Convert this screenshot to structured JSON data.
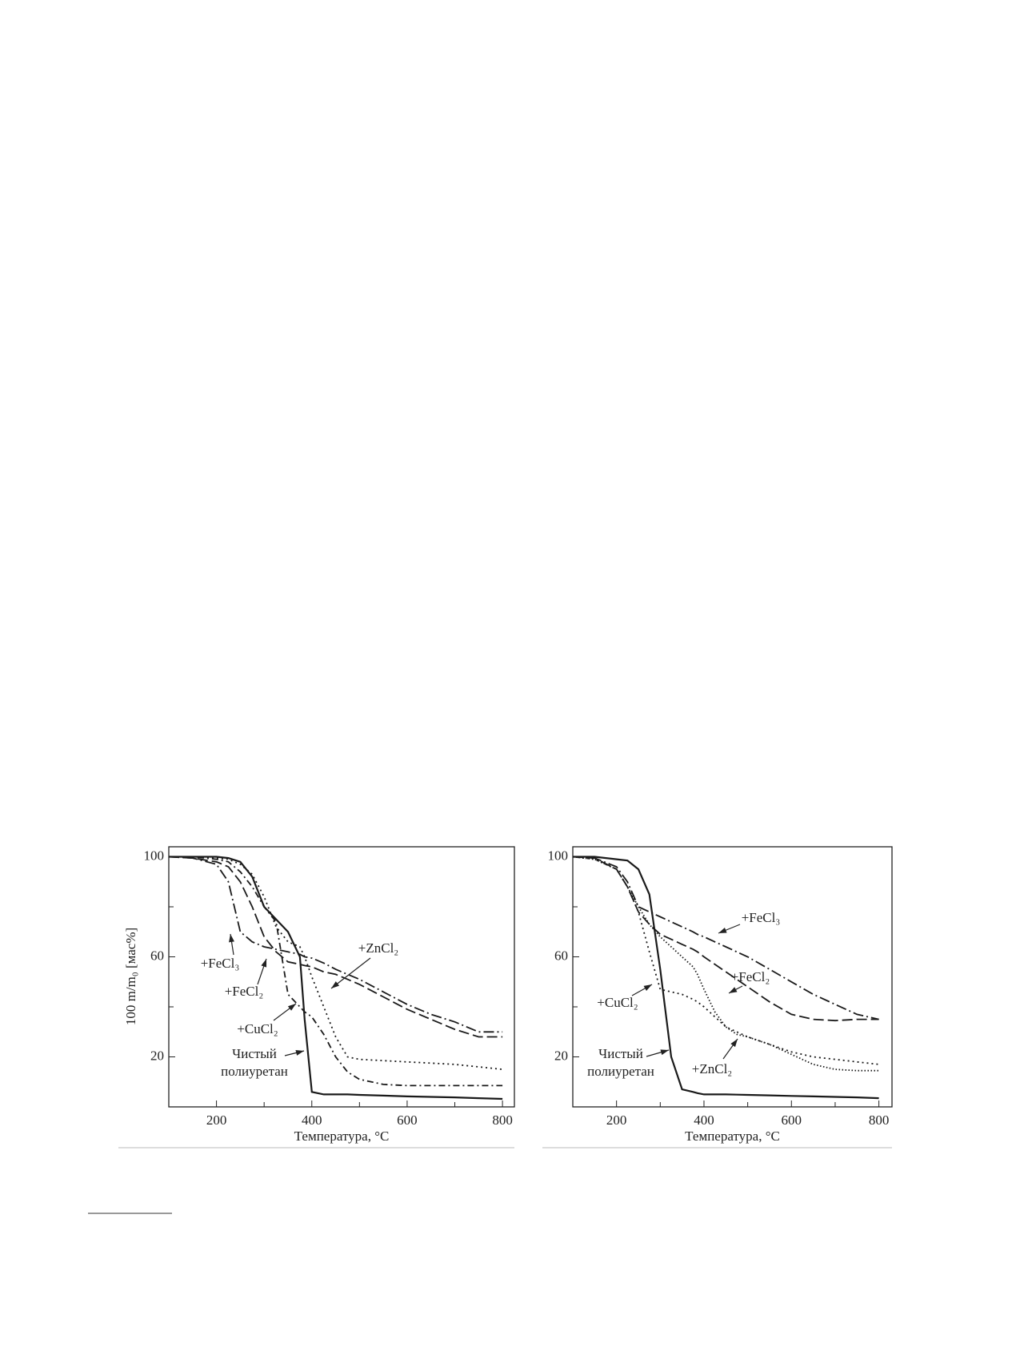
{
  "chart_data": [
    {
      "type": "line",
      "xlabel": "Температура, °C",
      "ylabel": "100 m/m₀ [мас%]",
      "x": [
        100,
        150,
        200,
        225,
        250,
        275,
        300,
        325,
        350,
        375,
        385,
        400,
        425,
        450,
        475,
        500,
        550,
        600,
        650,
        700,
        750,
        800
      ],
      "xlim": [
        100,
        825
      ],
      "ylim": [
        0,
        104
      ],
      "xticks": [
        200,
        400,
        600,
        800
      ],
      "yticks": [
        20,
        60,
        100
      ],
      "xminor": [
        300,
        500,
        700
      ],
      "yminor": [
        40,
        80
      ],
      "color": "#1a1a1a",
      "series": [
        {
          "name": "Чистый полиуретан",
          "line_style": "solid",
          "values": [
            100,
            100,
            100,
            99.5,
            98,
            92,
            80,
            75,
            70,
            60,
            35,
            6,
            5,
            5,
            5,
            4.8,
            4.5,
            4.2,
            4,
            3.8,
            3.5,
            3.2
          ]
        },
        {
          "name": "+FeCl₃",
          "line_style": "dashdot",
          "values": [
            100,
            99.5,
            97,
            90,
            70,
            66,
            64,
            63,
            62,
            61,
            60,
            59.5,
            57.5,
            55,
            53,
            51,
            46,
            41,
            37,
            34,
            30,
            30
          ]
        },
        {
          "name": "+FeCl₂",
          "line_style": "dashed",
          "values": [
            100,
            99.5,
            98,
            96,
            90,
            80,
            68,
            62,
            58,
            57,
            56.5,
            56,
            54,
            53,
            51,
            49,
            44,
            39,
            35,
            31,
            28,
            28
          ]
        },
        {
          "name": "+CuCl₂",
          "line_style": "dashdot2",
          "values": [
            100,
            100,
            99,
            98,
            94,
            88,
            80,
            74,
            45,
            40,
            38,
            36,
            29,
            20,
            14,
            11,
            9,
            8.5,
            8.5,
            8.5,
            8.5,
            8.5
          ]
        },
        {
          "name": "+ZnCl₂",
          "line_style": "dotted",
          "values": [
            100,
            100,
            99.5,
            99,
            97,
            93,
            84,
            72,
            66,
            64,
            60,
            52,
            40,
            28,
            20,
            19,
            18.5,
            18,
            17.5,
            17,
            16,
            15
          ]
        }
      ]
    },
    {
      "type": "line",
      "xlabel": "Температура, °C",
      "x": [
        100,
        150,
        200,
        225,
        250,
        275,
        300,
        325,
        350,
        375,
        385,
        400,
        425,
        450,
        475,
        500,
        550,
        600,
        650,
        700,
        750,
        800
      ],
      "xlim": [
        100,
        830
      ],
      "ylim": [
        0,
        104
      ],
      "xticks": [
        200,
        400,
        600,
        800
      ],
      "yticks": [
        20,
        60,
        100
      ],
      "xminor": [
        300,
        500,
        700
      ],
      "yminor": [
        40,
        80
      ],
      "color": "#1a1a1a",
      "series": [
        {
          "name": "Чистый полиуретан",
          "line_style": "solid",
          "values": [
            100,
            100,
            99,
            98.5,
            95,
            85,
            55,
            20,
            7,
            6,
            5.5,
            5,
            5,
            5,
            4.9,
            4.8,
            4.6,
            4.4,
            4.2,
            4,
            3.8,
            3.5
          ]
        },
        {
          "name": "+FeCl₃",
          "line_style": "dashdot",
          "values": [
            100,
            99.5,
            96,
            90,
            80,
            78,
            76,
            74,
            72,
            70,
            69,
            68,
            66,
            64,
            62,
            60,
            55,
            50,
            45,
            41,
            37,
            35
          ]
        },
        {
          "name": "+FeCl₂",
          "line_style": "dashed",
          "values": [
            100,
            99.5,
            95,
            88,
            78,
            73,
            69,
            67,
            65,
            63,
            62,
            60,
            57,
            54,
            51,
            48,
            42,
            37,
            35,
            34.5,
            35,
            35
          ]
        },
        {
          "name": "+CuCl₂",
          "line_style": "dotted",
          "values": [
            100,
            99,
            95,
            88,
            78,
            62,
            47,
            46,
            45,
            43,
            42,
            40,
            36,
            32,
            30,
            28,
            25,
            22,
            20,
            19,
            18,
            17
          ]
        },
        {
          "name": "+ZnCl₂",
          "line_style": "dotted2",
          "values": [
            100,
            99,
            95,
            88,
            80,
            73,
            68,
            64,
            60,
            56,
            53,
            47,
            38,
            32,
            29,
            28,
            25,
            21,
            17,
            15,
            14.5,
            14.5
          ]
        }
      ]
    }
  ]
}
